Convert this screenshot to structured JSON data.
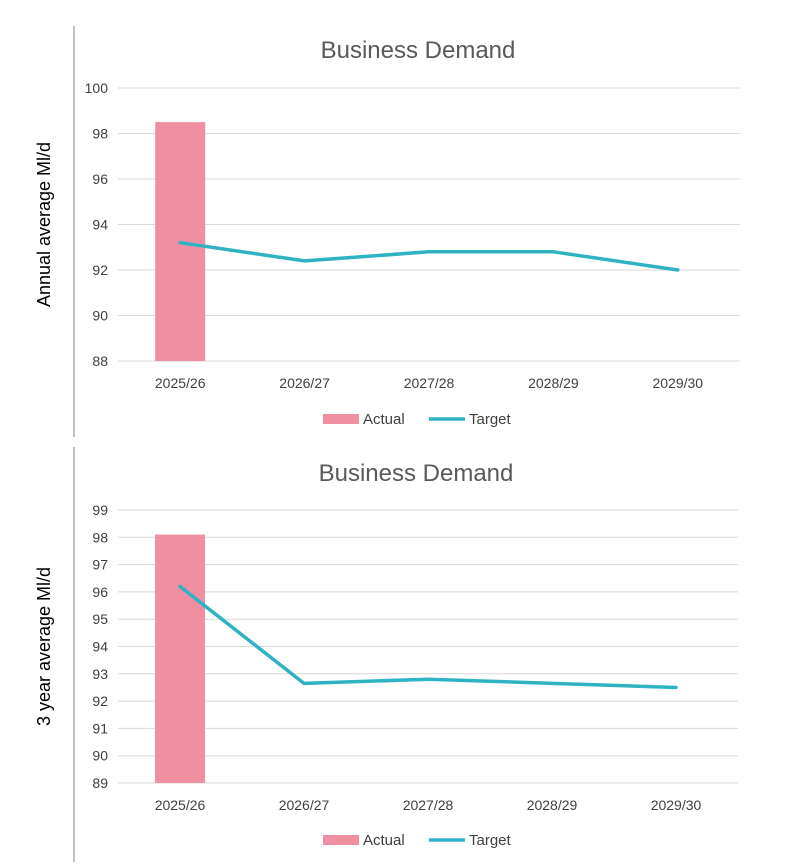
{
  "colors": {
    "actual": "#F08FA2",
    "target": "#2FB3C2",
    "grid": "#D9D9D9",
    "divider": "#BFBFBF"
  },
  "chart_data": [
    {
      "type": "bar+line",
      "title": "Business Demand",
      "ylabel": "Annual average Ml/d",
      "categories": [
        "2025/26",
        "2026/27",
        "2027/28",
        "2028/29",
        "2029/30"
      ],
      "ylim": [
        88,
        100
      ],
      "yticks": [
        88,
        90,
        92,
        94,
        96,
        98,
        100
      ],
      "grid": true,
      "legend": "bottom",
      "series": [
        {
          "name": "Actual",
          "type": "bar",
          "values": [
            98.5,
            null,
            null,
            null,
            null
          ]
        },
        {
          "name": "Target",
          "type": "line",
          "values": [
            93.2,
            92.4,
            92.8,
            92.8,
            92.0
          ]
        }
      ]
    },
    {
      "type": "bar+line",
      "title": "Business Demand",
      "ylabel": "3 year average Ml/d",
      "categories": [
        "2025/26",
        "2026/27",
        "2027/28",
        "2028/29",
        "2029/30"
      ],
      "ylim": [
        89,
        99
      ],
      "yticks": [
        89,
        90,
        91,
        92,
        93,
        94,
        95,
        96,
        97,
        98,
        99
      ],
      "grid": true,
      "legend": "bottom",
      "series": [
        {
          "name": "Actual",
          "type": "bar",
          "values": [
            98.1,
            null,
            null,
            null,
            null
          ]
        },
        {
          "name": "Target",
          "type": "line",
          "values": [
            96.2,
            92.65,
            92.8,
            92.65,
            92.5
          ]
        }
      ]
    }
  ]
}
